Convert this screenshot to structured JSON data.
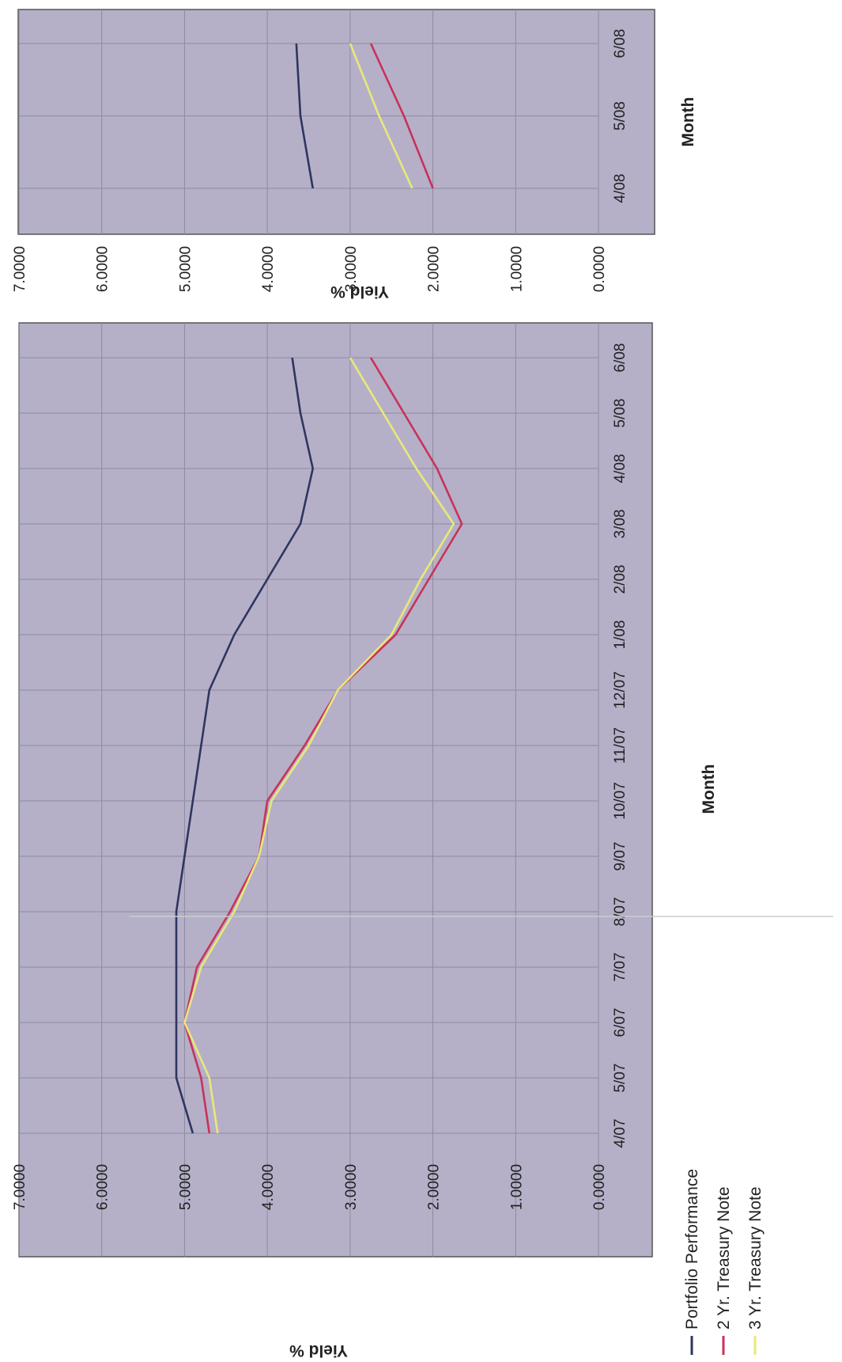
{
  "chart_data": [
    {
      "type": "line",
      "x_label": "Month",
      "y_label": "Yield %",
      "ylim": [
        0,
        7
      ],
      "yticks": [
        "0.0000",
        "1.0000",
        "2.0000",
        "3.0000",
        "4.0000",
        "5.0000",
        "6.0000",
        "7.0000"
      ],
      "categories": [
        "4/07",
        "5/07",
        "6/07",
        "7/07",
        "8/07",
        "9/07",
        "10/07",
        "11/07",
        "12/07",
        "1/08",
        "2/08",
        "3/08",
        "4/08",
        "5/08",
        "6/08"
      ],
      "grid": true,
      "orientation": "rotated 90° clockwise",
      "series": [
        {
          "name": "Portfolio Performance",
          "color": "#2e3560",
          "values": [
            4.9,
            5.1,
            5.1,
            5.1,
            5.1,
            5.0,
            4.9,
            4.8,
            4.7,
            4.4,
            4.0,
            3.6,
            3.45,
            3.6,
            3.7
          ]
        },
        {
          "name": "2 Yr. Treasury Note",
          "color": "#c8325a",
          "values": [
            4.7,
            4.8,
            5.0,
            4.85,
            4.45,
            4.1,
            4.0,
            3.55,
            3.15,
            2.45,
            2.05,
            1.65,
            1.95,
            2.35,
            2.75
          ]
        },
        {
          "name": "3 Yr. Treasury Note",
          "color": "#e8e87a",
          "values": [
            4.6,
            4.7,
            5.0,
            4.8,
            4.4,
            4.1,
            3.95,
            3.5,
            3.15,
            2.5,
            2.15,
            1.75,
            2.2,
            2.6,
            3.0
          ]
        }
      ]
    },
    {
      "type": "line",
      "x_label": "Month",
      "y_label": "Yield %",
      "ylim": [
        0,
        7
      ],
      "yticks": [
        "0.0000",
        "1.0000",
        "2.0000",
        "3.0000",
        "4.0000",
        "5.0000",
        "6.0000",
        "7.0000"
      ],
      "categories": [
        "4/08",
        "5/08",
        "6/08"
      ],
      "grid": true,
      "orientation": "rotated 90° clockwise",
      "series": [
        {
          "color": "#2e3560",
          "values": [
            3.45,
            3.6,
            3.65
          ]
        },
        {
          "color": "#c8325a",
          "values": [
            2.0,
            2.35,
            2.75
          ]
        },
        {
          "color": "#e8e87a",
          "values": [
            2.25,
            2.65,
            3.0
          ]
        }
      ]
    }
  ]
}
